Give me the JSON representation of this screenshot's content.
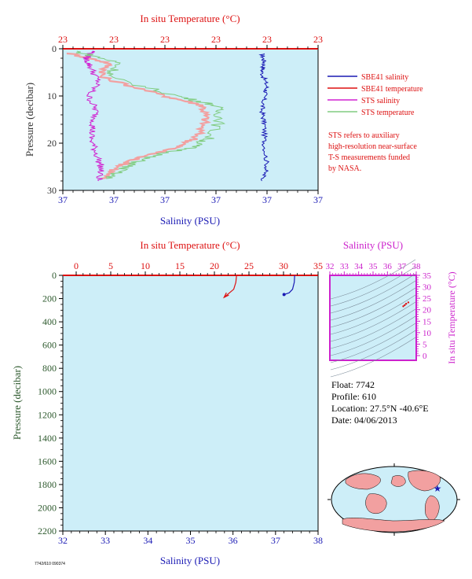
{
  "colors": {
    "plot_bg": "#cdeef8",
    "temp": "#dd1111",
    "salinity": "#1a1ab4",
    "sts_salinity": "#d020d0",
    "sts_temp": "#80cc80",
    "sts_temp_pink": "#f2a0a0",
    "pressure_label": "#333333",
    "magenta": "#cc22cc",
    "deep_pressure_label": "#2e5a2e"
  },
  "top_panel": {
    "top_axis_label": "In situ Temperature (°C)",
    "bottom_axis_label": "Salinity (PSU)",
    "left_axis_label": "Pressure (decibar)",
    "top_ticks": [
      "23",
      "23",
      "23",
      "23",
      "23",
      "23"
    ],
    "bottom_ticks": [
      "37",
      "37",
      "37",
      "37",
      "37",
      "37"
    ],
    "left_ticks": [
      "0",
      "10",
      "20",
      "30"
    ]
  },
  "legend": {
    "items": [
      {
        "label": "SBE41 salinity",
        "color": "#1a1ab4"
      },
      {
        "label": "SBE41 temperature",
        "color": "#dd1111"
      },
      {
        "label": "STS salinity",
        "color": "#d020d0"
      },
      {
        "label": "STS temperature",
        "color": "#80cc80"
      }
    ],
    "note": [
      "STS refers to auxiliary",
      "high-resolution near-surface",
      "T-S measurements funded",
      "by NASA."
    ]
  },
  "bottom_panel": {
    "top_axis_label": "In situ Temperature (°C)",
    "bottom_axis_label": "Salinity (PSU)",
    "left_axis_label": "Pressure (decibar)",
    "top_ticks": [
      "0",
      "5",
      "10",
      "15",
      "20",
      "25",
      "30",
      "35"
    ],
    "bottom_ticks": [
      "32",
      "33",
      "34",
      "35",
      "36",
      "37",
      "38"
    ],
    "left_ticks": [
      "0",
      "200",
      "400",
      "600",
      "800",
      "1000",
      "1200",
      "1400",
      "1600",
      "1800",
      "2000",
      "2200"
    ]
  },
  "ts_panel": {
    "top_axis_label": "Salinity (PSU)",
    "right_axis_label": "In situ Temperature (°C)",
    "top_ticks": [
      "32",
      "33",
      "34",
      "35",
      "36",
      "37",
      "38"
    ],
    "right_ticks": [
      "0",
      "5",
      "10",
      "15",
      "20",
      "25",
      "30",
      "35"
    ]
  },
  "float_info": {
    "float": "Float:  7742",
    "profile": "Profile:  610",
    "location": "Location:  27.5°N  -40.6°E",
    "date": "Date:  04/06/2013"
  },
  "footer_code": "7742/610 090374",
  "chart_data": [
    {
      "type": "line",
      "panel": "top",
      "ylabel": "Pressure (decibar)",
      "ylim": [
        30,
        0
      ],
      "series": [
        {
          "name": "SBE41 salinity",
          "x": [
            0.78,
            0.79,
            0.78,
            0.8,
            0.79,
            0.78,
            0.79,
            0.79,
            0.8,
            0.78
          ],
          "y": [
            1,
            3,
            5,
            8,
            10,
            13,
            16,
            20,
            25,
            28
          ]
        },
        {
          "name": "SBE41 temperature",
          "x": [
            0.03,
            0.18,
            0.15,
            0.4,
            0.55,
            0.56,
            0.52,
            0.44,
            0.3,
            0.22,
            0.15
          ],
          "y": [
            1,
            3,
            6,
            10,
            12,
            15,
            19,
            21,
            23,
            25,
            27.5
          ]
        },
        {
          "name": "STS salinity",
          "x": [
            0.12,
            0.09,
            0.11,
            0.14,
            0.1,
            0.13,
            0.12,
            0.11,
            0.13,
            0.15,
            0.14
          ],
          "y": [
            0.5,
            2,
            4,
            7,
            10,
            13,
            16,
            19,
            22,
            25,
            28
          ]
        },
        {
          "name": "STS temperature",
          "x": [
            0.05,
            0.22,
            0.18,
            0.45,
            0.6,
            0.62,
            0.57,
            0.5,
            0.33,
            0.25,
            0.17
          ],
          "y": [
            0.5,
            3,
            6,
            10,
            12,
            15,
            19,
            21,
            23,
            25,
            27.5
          ]
        }
      ]
    },
    {
      "type": "line",
      "panel": "bottom",
      "xlabel": "Salinity (PSU)",
      "ylabel": "Pressure (decibar)",
      "xlim": [
        32,
        38
      ],
      "ylim": [
        2200,
        0
      ],
      "temp_lim": [
        0,
        35
      ],
      "series": [
        {
          "name": "In situ Temperature (°C)",
          "temp": [
            23.2,
            23.1,
            22.8,
            22.0,
            21.4
          ],
          "pressure": [
            0,
            60,
            120,
            160,
            190
          ]
        },
        {
          "name": "Salinity (PSU)",
          "salinity": [
            37.45,
            37.44,
            37.4,
            37.32,
            37.2
          ],
          "pressure": [
            0,
            60,
            120,
            150,
            165
          ]
        }
      ]
    },
    {
      "type": "scatter",
      "panel": "ts",
      "xlabel": "Salinity (PSU)",
      "ylabel": "In situ Temperature (°C)",
      "xlim": [
        32,
        38
      ],
      "ylim": [
        -2,
        35
      ],
      "salinity": [
        37.1,
        37.2,
        37.3,
        37.45
      ],
      "temperature": [
        21.5,
        22.0,
        22.6,
        23.2
      ]
    }
  ]
}
